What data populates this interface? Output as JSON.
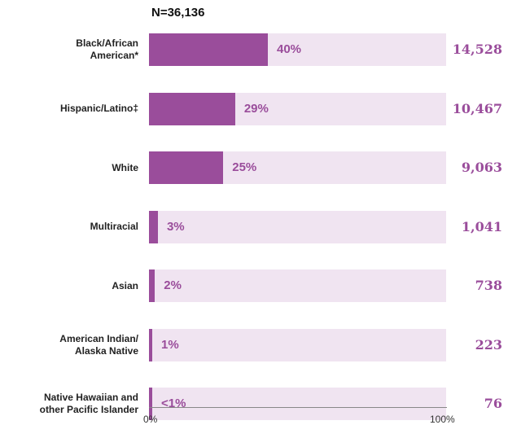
{
  "chart_data": {
    "type": "bar",
    "orientation": "horizontal",
    "title": "N=36,136",
    "categories": [
      [
        "Black/African",
        "American*"
      ],
      [
        "Hispanic/Latino‡"
      ],
      [
        "White"
      ],
      [
        "Multiracial"
      ],
      [
        "Asian"
      ],
      [
        "American Indian/",
        "Alaska Native"
      ],
      [
        "Native Hawaiian and",
        "other Pacific Islander"
      ]
    ],
    "values": [
      40,
      29,
      25,
      3,
      2,
      1,
      0.5
    ],
    "value_labels": [
      "40%",
      "29%",
      "25%",
      "3%",
      "2%",
      "1%",
      "<1%"
    ],
    "counts": [
      "14,528",
      "10,467",
      "9,063",
      "1,041",
      "738",
      "223",
      "76"
    ],
    "xlim": [
      0,
      100
    ],
    "x_tick_labels": [
      "0%",
      "100%"
    ],
    "colors": {
      "bar": "#9a4d9b",
      "track": "#f0e4f1",
      "count": "#9a4d9b"
    }
  }
}
